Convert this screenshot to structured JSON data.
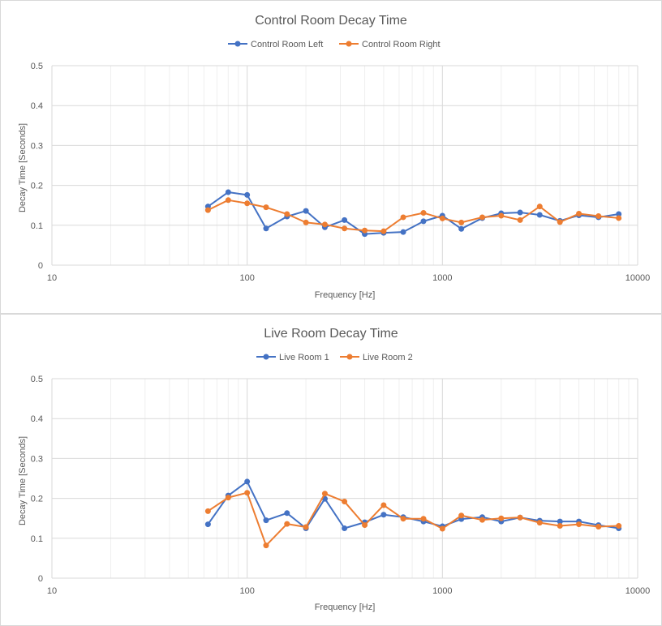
{
  "chart_data": [
    {
      "type": "line",
      "title": "Control Room Decay Time",
      "xlabel": "Frequency  [Hz]",
      "ylabel": "Decay Time [Seconds]",
      "xscale": "log",
      "xlim": [
        10,
        10000
      ],
      "ylim": [
        0,
        0.5
      ],
      "x_ticks": [
        "10",
        "100",
        "1000",
        "10000"
      ],
      "y_ticks": [
        "0",
        "0.1",
        "0.2",
        "0.3",
        "0.4",
        "0.5"
      ],
      "grid": true,
      "legend": "top",
      "x": [
        63,
        80,
        100,
        125,
        160,
        200,
        250,
        315,
        400,
        500,
        630,
        800,
        1000,
        1250,
        1600,
        2000,
        2500,
        3150,
        4000,
        5000,
        6300,
        8000
      ],
      "series": [
        {
          "name": "Control Room Left",
          "color": "#4472c4",
          "values": [
            0.147,
            0.183,
            0.176,
            0.092,
            0.122,
            0.136,
            0.095,
            0.113,
            0.078,
            0.081,
            0.083,
            0.11,
            0.124,
            0.091,
            0.118,
            0.13,
            0.132,
            0.126,
            0.111,
            0.125,
            0.12,
            0.128
          ]
        },
        {
          "name": "Control Room Right",
          "color": "#ed7d31",
          "values": [
            0.138,
            0.163,
            0.155,
            0.145,
            0.128,
            0.107,
            0.102,
            0.092,
            0.087,
            0.085,
            0.12,
            0.131,
            0.117,
            0.107,
            0.12,
            0.124,
            0.113,
            0.147,
            0.108,
            0.129,
            0.123,
            0.118
          ]
        }
      ]
    },
    {
      "type": "line",
      "title": "Live Room Decay Time",
      "xlabel": "Frequency  [Hz]",
      "ylabel": "Decay Time [Seconds]",
      "xscale": "log",
      "xlim": [
        10,
        10000
      ],
      "ylim": [
        0,
        0.5
      ],
      "x_ticks": [
        "10",
        "100",
        "1000",
        "10000"
      ],
      "y_ticks": [
        "0",
        "0.1",
        "0.2",
        "0.3",
        "0.4",
        "0.5"
      ],
      "grid": true,
      "legend": "top",
      "x": [
        63,
        80,
        100,
        125,
        160,
        200,
        250,
        315,
        400,
        500,
        630,
        800,
        1000,
        1250,
        1600,
        2000,
        2500,
        3150,
        4000,
        5000,
        6300,
        8000
      ],
      "series": [
        {
          "name": "Live Room 1",
          "color": "#4472c4",
          "values": [
            0.135,
            0.207,
            0.242,
            0.145,
            0.163,
            0.125,
            0.199,
            0.125,
            0.14,
            0.159,
            0.153,
            0.142,
            0.13,
            0.148,
            0.153,
            0.142,
            0.152,
            0.144,
            0.142,
            0.142,
            0.133,
            0.125
          ]
        },
        {
          "name": "Live Room 2",
          "color": "#ed7d31",
          "values": [
            0.168,
            0.202,
            0.214,
            0.082,
            0.136,
            0.128,
            0.212,
            0.192,
            0.133,
            0.183,
            0.149,
            0.149,
            0.124,
            0.157,
            0.146,
            0.15,
            0.152,
            0.139,
            0.131,
            0.135,
            0.129,
            0.131
          ]
        }
      ]
    }
  ]
}
